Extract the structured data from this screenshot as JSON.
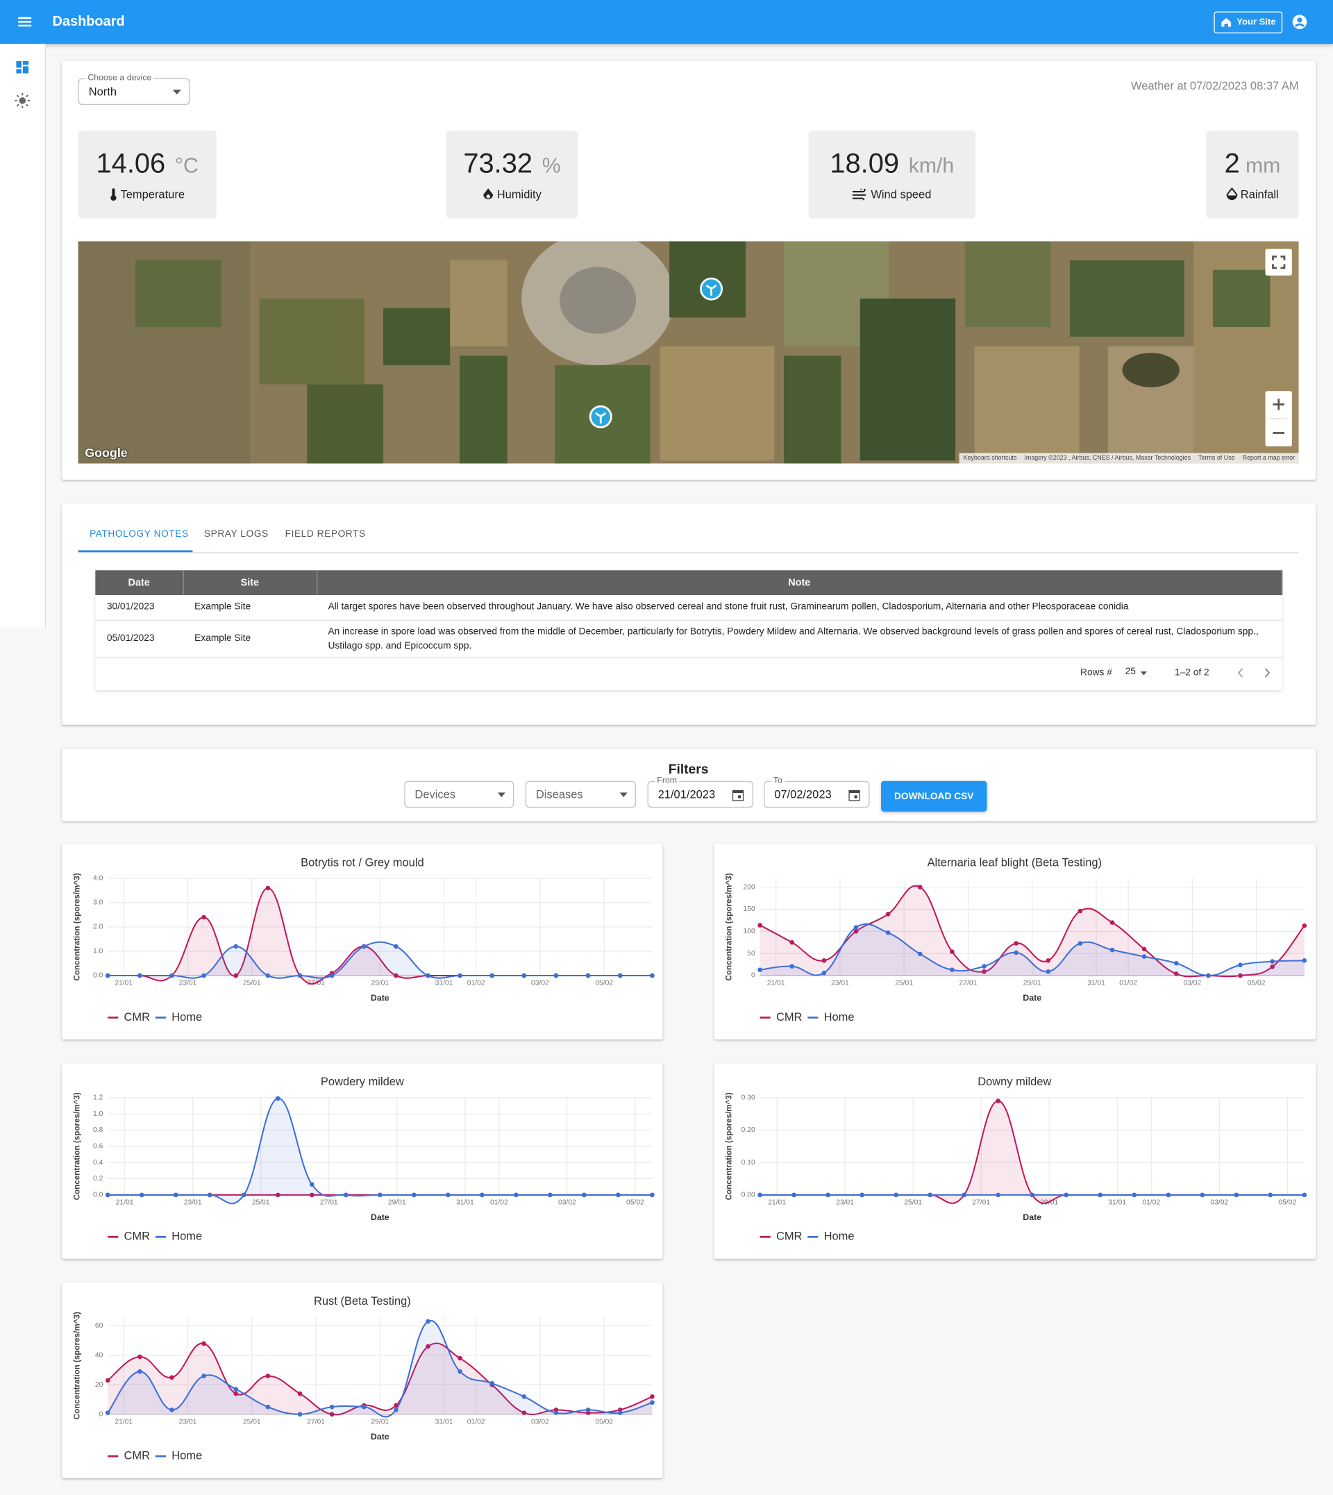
{
  "header": {
    "title": "Dashboard",
    "site_button": "Your Site"
  },
  "device": {
    "label": "Choose a device",
    "value": "North"
  },
  "weather": {
    "caption": "Weather at 07/02/2023 08:37 AM",
    "cards": [
      {
        "value": "14.06",
        "unit": "°C",
        "label": "Temperature"
      },
      {
        "value": "73.32",
        "unit": "%",
        "label": "Humidity"
      },
      {
        "value": "18.09",
        "unit": "km/h",
        "label": "Wind speed"
      },
      {
        "value": "2",
        "unit": "mm",
        "label": "Rainfall"
      }
    ]
  },
  "map": {
    "brand": "Google",
    "footer": [
      "Keyboard shortcuts",
      "Imagery ©2023 , Airbus, CNES / Airbus, Maxar Technologies",
      "Terms of Use",
      "Report a map error"
    ]
  },
  "tabs": [
    "PATHOLOGY NOTES",
    "SPRAY LOGS",
    "FIELD REPORTS"
  ],
  "table": {
    "columns": [
      "Date",
      "Site",
      "Note"
    ],
    "rows": [
      [
        "30/01/2023",
        "Example Site",
        "All target spores have been observed throughout January. We have also observed cereal and stone fruit rust, Graminearum pollen, Cladosporium, Alternaria and other Pleosporaceae conidia"
      ],
      [
        "05/01/2023",
        "Example Site",
        "An increase in spore load was observed from the middle of December, particularly for Botrytis, Powdery Mildew and Alternaria. We observed background levels of grass pollen and spores of cereal rust, Cladosporium spp., Ustilago spp. and Epicoccum spp."
      ]
    ],
    "pagination": {
      "rows_label": "Rows #",
      "rows_per_page": "25",
      "range": "1–2 of 2"
    }
  },
  "filters": {
    "title": "Filters",
    "devices": "Devices",
    "diseases": "Diseases",
    "from_label": "From",
    "from": "21/01/2023",
    "to_label": "To",
    "to": "07/02/2023",
    "download": "DOWNLOAD CSV"
  },
  "chart_data": [
    {
      "type": "line",
      "title": "Botrytis rot / Grey mould",
      "x_label": "Date",
      "y_label": "Concentration (spores/m^3)",
      "categories": [
        null,
        "21/01",
        null,
        "23/01",
        null,
        "25/01",
        null,
        "27/01",
        null,
        "29/01",
        null,
        "31/01",
        "01/02",
        null,
        "03/02",
        null,
        "05/02",
        null
      ],
      "ylim": [
        0,
        4
      ],
      "yticks": [
        {
          "value": 0,
          "label": "0.0"
        },
        {
          "value": 1,
          "label": "1.0"
        },
        {
          "value": 2,
          "label": "2.0"
        },
        {
          "value": 3,
          "label": "3.0"
        },
        {
          "value": 4,
          "label": "4.0"
        }
      ],
      "grid": true,
      "series": [
        {
          "name": "CMR",
          "color": "#c2185b",
          "values": [
            0,
            0,
            0,
            2.4,
            0,
            3.6,
            0,
            0.1,
            1.2,
            0,
            0,
            0,
            0,
            0,
            0,
            0,
            0,
            0
          ]
        },
        {
          "name": "Home",
          "color": "#3d6fd9",
          "values": [
            0,
            0,
            0,
            0,
            1.2,
            0,
            0,
            0,
            1.2,
            1.2,
            0,
            0,
            0,
            0,
            0,
            0,
            0,
            0
          ]
        }
      ]
    },
    {
      "type": "line",
      "title": "Alternaria leaf blight (Beta Testing)",
      "x_label": "Date",
      "y_label": "Concentration (spores/m^3)",
      "categories": [
        null,
        "21/01",
        null,
        "23/01",
        null,
        "25/01",
        null,
        "27/01",
        null,
        "29/01",
        null,
        "31/01",
        "01/02",
        null,
        "03/02",
        null,
        "05/02",
        null
      ],
      "ylim": [
        0,
        220
      ],
      "yticks": [
        0,
        50,
        100,
        150,
        200
      ],
      "grid": true,
      "series": [
        {
          "name": "CMR",
          "color": "#c2185b",
          "values": [
            114,
            75,
            34,
            100,
            139,
            200,
            54,
            9,
            73,
            34,
            146,
            120,
            60,
            4,
            0,
            0,
            20,
            113
          ]
        },
        {
          "name": "Home",
          "color": "#3d6fd9",
          "values": [
            13,
            21,
            6,
            109,
            97,
            49,
            13,
            21,
            52,
            9,
            73,
            58,
            43,
            28,
            0,
            24,
            32,
            34
          ]
        }
      ]
    },
    {
      "type": "line",
      "title": "Powdery mildew",
      "x_label": "Date",
      "y_label": "Concentration (spores/m^3)",
      "categories": [
        null,
        "21/01",
        null,
        "23/01",
        null,
        "25/01",
        null,
        "27/01",
        null,
        "29/01",
        null,
        "31/01",
        "01/02",
        null,
        "03/02",
        null,
        "05/02"
      ],
      "ylim": [
        0,
        1.2
      ],
      "yticks": [
        {
          "value": 0,
          "label": "0.0"
        },
        0.2,
        0.4,
        0.6,
        0.8,
        {
          "value": 1,
          "label": "1.0"
        },
        1.2
      ],
      "grid": true,
      "series": [
        {
          "name": "CMR",
          "color": "#c2185b",
          "values": [
            0,
            0,
            0,
            0,
            0,
            0,
            0,
            0,
            0,
            0,
            0,
            0,
            0,
            0,
            0,
            0,
            0
          ]
        },
        {
          "name": "Home",
          "color": "#3d6fd9",
          "values": [
            0,
            0,
            0,
            0,
            0,
            1.19,
            0.13,
            0,
            0,
            0,
            0,
            0,
            0,
            0,
            0,
            0,
            0
          ]
        }
      ]
    },
    {
      "type": "line",
      "title": "Downy mildew",
      "x_label": "Date",
      "y_label": "Concentration (spores/m^3)",
      "categories": [
        null,
        "21/01",
        null,
        "23/01",
        null,
        "25/01",
        null,
        "27/01",
        null,
        "29/01",
        null,
        "31/01",
        "01/02",
        null,
        "03/02",
        null,
        "05/02"
      ],
      "ylim": [
        0,
        0.3
      ],
      "yticks": [
        {
          "value": 0,
          "label": "0.00"
        },
        {
          "value": 0.1,
          "label": "0.10"
        },
        {
          "value": 0.2,
          "label": "0.20"
        },
        {
          "value": 0.3,
          "label": "0.30"
        }
      ],
      "grid": true,
      "series": [
        {
          "name": "CMR",
          "color": "#c2185b",
          "values": [
            0,
            0,
            0,
            0,
            0,
            0,
            0,
            0.29,
            0,
            0,
            0,
            0,
            0,
            0,
            0,
            0,
            0
          ]
        },
        {
          "name": "Home",
          "color": "#3d6fd9",
          "values": [
            0,
            0,
            0,
            0,
            0,
            0,
            0,
            0,
            0,
            0,
            0,
            0,
            0,
            0,
            0,
            0,
            0
          ]
        }
      ]
    },
    {
      "type": "line",
      "title": "Rust (Beta Testing)",
      "x_label": "Date",
      "y_label": "Concentration (spores/m^3)",
      "categories": [
        null,
        "21/01",
        null,
        "23/01",
        null,
        "25/01",
        null,
        "27/01",
        null,
        "29/01",
        null,
        "31/01",
        "01/02",
        null,
        "03/02",
        null,
        "05/02",
        null
      ],
      "ylim": [
        0,
        66
      ],
      "yticks": [
        0,
        20,
        40,
        60
      ],
      "grid": true,
      "series": [
        {
          "name": "CMR",
          "color": "#c2185b",
          "values": [
            23,
            39,
            25,
            48,
            14,
            26,
            14,
            0,
            6,
            6,
            46,
            38,
            20,
            1,
            3,
            1,
            3,
            12
          ]
        },
        {
          "name": "Home",
          "color": "#3d6fd9",
          "values": [
            1,
            29,
            3,
            26,
            17,
            5,
            0,
            5,
            5,
            3,
            63,
            29,
            21,
            12,
            1,
            3,
            1,
            8
          ]
        }
      ]
    }
  ]
}
